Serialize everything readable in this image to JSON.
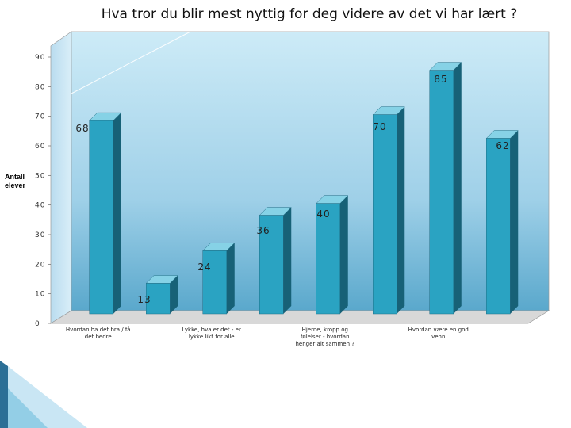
{
  "chart_data": {
    "type": "bar",
    "title": "Hva tror du blir mest nyttig for deg videre av det vi har lært ?",
    "ylabel": "Antall elever",
    "xlabel": "",
    "ylim": [
      0,
      90
    ],
    "yticks": [
      "0",
      "10",
      "20",
      "30",
      "40",
      "50",
      "60",
      "70",
      "80",
      "90"
    ],
    "categories": [
      "Hvordan ha det bra / få det bedre",
      "",
      "Lykke, hva er det - er lykke likt for alle",
      "",
      "Hjerne, kropp og følelser - hvordan henger alt sammen ?",
      "",
      "Hvordan være en god venn",
      ""
    ],
    "values": [
      68,
      13,
      24,
      36,
      40,
      70,
      85,
      62
    ],
    "data_labels": [
      "68",
      "13",
      "24",
      "36",
      "40",
      "70",
      "85",
      "62"
    ],
    "grid": false,
    "legend": "none",
    "colors": {
      "bar_front": "#2aa3c2",
      "bar_side": "#176177",
      "bar_top": "#86d2e6",
      "wall_top": "#c8e8f5",
      "wall_bottom": "#5da9cc",
      "floor": "#d6d6d6",
      "accent": "#2b7fa6"
    }
  }
}
